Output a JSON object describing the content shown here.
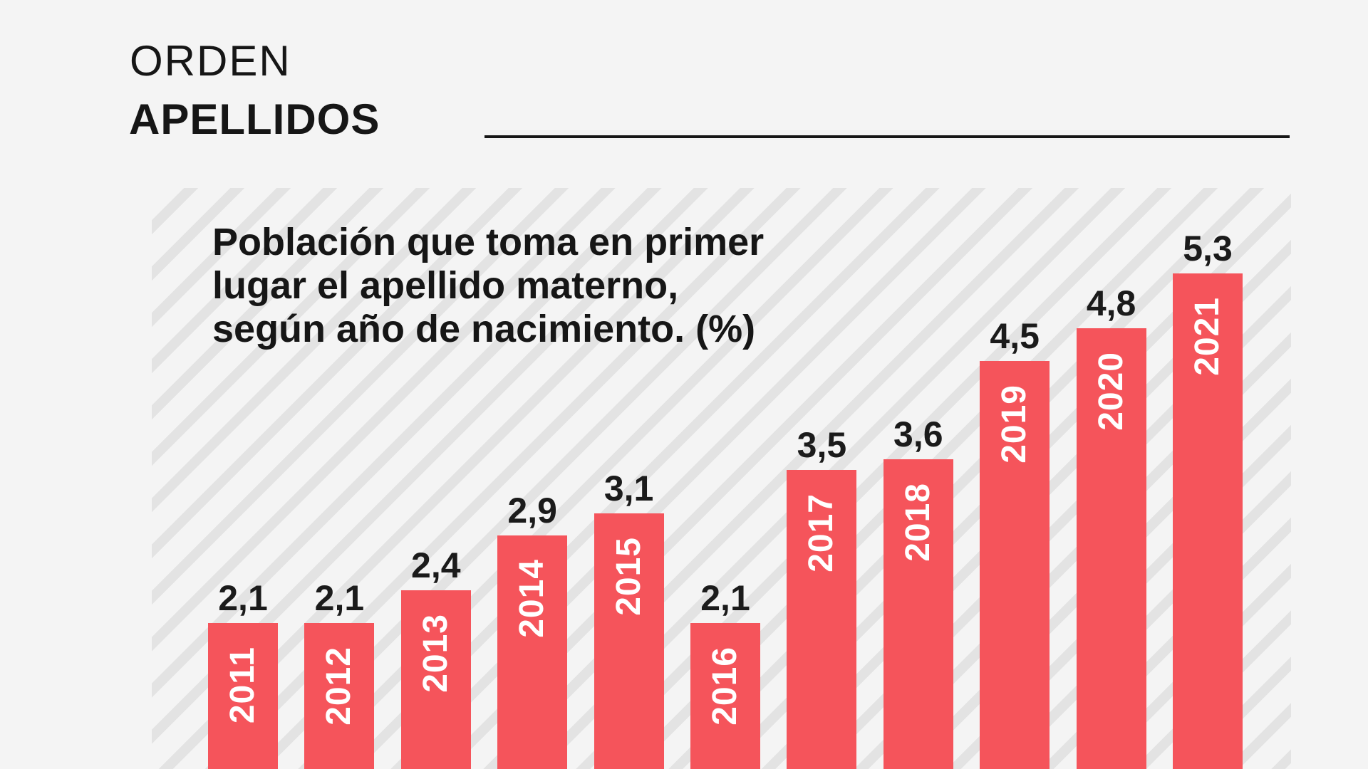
{
  "header": {
    "title_light": "ORDEN",
    "title_bold": "APELLIDOS"
  },
  "colors": {
    "background": "#f4f4f4",
    "stripe": "#e3e3e3",
    "bar": "#f5545b",
    "text": "#161616",
    "bar_label": "#ffffff",
    "value_label": "#1b1b1b"
  },
  "chart_data": {
    "type": "bar",
    "title": "Población que toma en primer lugar el apellido materno, según año de nacimiento. (%)",
    "subtitle_lines": [
      "Población que toma en primer",
      "lugar el apellido materno,",
      "según año de nacimiento. (%)"
    ],
    "categories": [
      "2011",
      "2012",
      "2013",
      "2014",
      "2015",
      "2016",
      "2017",
      "2018",
      "2019",
      "2020",
      "2021"
    ],
    "values": [
      2.1,
      2.1,
      2.4,
      2.9,
      3.1,
      2.1,
      3.5,
      3.6,
      4.5,
      4.8,
      5.3
    ],
    "value_labels": [
      "2,1",
      "2,1",
      "2,4",
      "2,9",
      "3,1",
      "2,1",
      "3,5",
      "3,6",
      "4,5",
      "4,8",
      "5,3"
    ],
    "unit": "%",
    "ylim": [
      0,
      5.8
    ],
    "grid": false,
    "legend": false,
    "bar_orientation": "vertical",
    "value_label_position": "above-bar",
    "category_label_position": "inside-bar-rotated-bottom-up"
  }
}
